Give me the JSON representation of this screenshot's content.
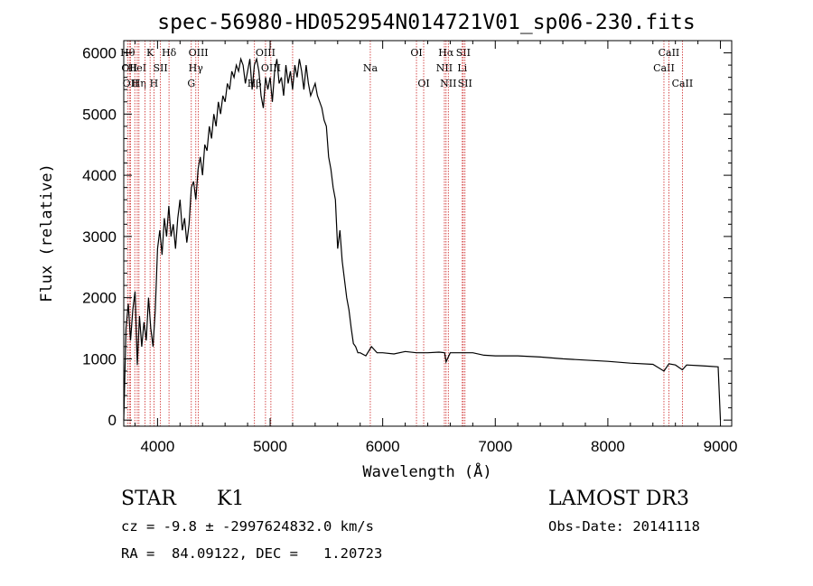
{
  "chart_data": {
    "type": "line",
    "title": "spec-56980-HD052954N014721V01_sp06-230.fits",
    "xlabel": "Wavelength (Å)",
    "ylabel": "Flux (relative)",
    "xlim": [
      3700,
      9100
    ],
    "ylim": [
      -100,
      6200
    ],
    "xticks": [
      4000,
      5000,
      6000,
      7000,
      8000,
      9000
    ],
    "yticks": [
      0,
      1000,
      2000,
      3000,
      4000,
      5000,
      6000
    ],
    "grid": false,
    "series": [
      {
        "x": [
          3700,
          3720,
          3740,
          3760,
          3780,
          3800,
          3820,
          3840,
          3860,
          3880,
          3900,
          3920,
          3940,
          3960,
          3980,
          4000,
          4020,
          4040,
          4060,
          4080,
          4100,
          4120,
          4140,
          4160,
          4180,
          4200,
          4220,
          4240,
          4260,
          4280,
          4300,
          4320,
          4340,
          4360,
          4380,
          4400,
          4420,
          4440,
          4460,
          4480,
          4500,
          4520,
          4540,
          4560,
          4580,
          4600,
          4620,
          4640,
          4660,
          4680,
          4700,
          4720,
          4740,
          4760,
          4780,
          4800,
          4820,
          4840,
          4860,
          4880,
          4900,
          4920,
          4940,
          4960,
          4980,
          5000,
          5020,
          5040,
          5060,
          5080,
          5100,
          5120,
          5140,
          5160,
          5180,
          5200,
          5220,
          5240,
          5260,
          5280,
          5300,
          5320,
          5340,
          5360,
          5380,
          5400,
          5420,
          5440,
          5460,
          5480,
          5500,
          5520,
          5540,
          5560,
          5580,
          5600,
          5620,
          5640,
          5660,
          5680,
          5700,
          5720,
          5740,
          5760,
          5780,
          5800,
          5850,
          5900,
          5950,
          6000,
          6100,
          6200,
          6300,
          6400,
          6500,
          6550,
          6563,
          6600,
          6700,
          6800,
          6900,
          7000,
          7200,
          7400,
          7600,
          7800,
          8000,
          8200,
          8400,
          8498,
          8542,
          8600,
          8662,
          8700,
          8800,
          8900,
          8980,
          9000
        ],
        "y": [
          0,
          1500,
          1900,
          1300,
          1800,
          2100,
          900,
          1700,
          1200,
          1600,
          1300,
          2000,
          1500,
          1200,
          1800,
          2800,
          3100,
          2700,
          3300,
          3000,
          3500,
          3000,
          3200,
          2800,
          3300,
          3600,
          3100,
          3300,
          2900,
          3200,
          3800,
          3900,
          3600,
          4100,
          4300,
          4000,
          4500,
          4400,
          4800,
          4600,
          5000,
          4800,
          5200,
          5000,
          5300,
          5200,
          5500,
          5400,
          5700,
          5600,
          5800,
          5700,
          5900,
          5800,
          5500,
          5700,
          5900,
          5400,
          5800,
          5900,
          5700,
          5300,
          5100,
          5600,
          5400,
          5600,
          5200,
          5700,
          5900,
          5500,
          5600,
          5300,
          5800,
          5500,
          5700,
          5400,
          5800,
          5600,
          5900,
          5700,
          5400,
          5800,
          5500,
          5300,
          5400,
          5500,
          5300,
          5200,
          5100,
          4900,
          4800,
          4300,
          4100,
          3800,
          3600,
          2800,
          3100,
          2600,
          2300,
          2000,
          1800,
          1500,
          1250,
          1200,
          1100,
          1100,
          1050,
          1200,
          1100,
          1100,
          1080,
          1120,
          1100,
          1100,
          1110,
          1100,
          950,
          1100,
          1100,
          1100,
          1060,
          1050,
          1050,
          1030,
          1000,
          980,
          960,
          930,
          910,
          800,
          920,
          900,
          820,
          900,
          890,
          880,
          870,
          0
        ]
      }
    ]
  },
  "line_markers": [
    {
      "x": 3734,
      "row": 1,
      "label": "Hθ"
    },
    {
      "x": 3750,
      "row": 2,
      "label": "OII"
    },
    {
      "x": 3760,
      "row": 3,
      "label": "OII"
    },
    {
      "x": 3798,
      "row": 1,
      "label": ""
    },
    {
      "x": 3820,
      "row": 2,
      "label": "HeI"
    },
    {
      "x": 3835,
      "row": 3,
      "label": "Hη"
    },
    {
      "x": 3889,
      "row": 3,
      "label": ""
    },
    {
      "x": 3934,
      "row": 1,
      "label": "K"
    },
    {
      "x": 3968,
      "row": 3,
      "label": "H"
    },
    {
      "x": 4026,
      "row": 2,
      "label": "SII"
    },
    {
      "x": 4102,
      "row": 1,
      "label": "Hδ"
    },
    {
      "x": 4300,
      "row": 3,
      "label": "G"
    },
    {
      "x": 4340,
      "row": 2,
      "label": "Hγ"
    },
    {
      "x": 4363,
      "row": 1,
      "label": "OIII"
    },
    {
      "x": 4861,
      "row": 3,
      "label": "Hβ"
    },
    {
      "x": 4959,
      "row": 1,
      "label": "OIII"
    },
    {
      "x": 5007,
      "row": 2,
      "label": "OIII"
    },
    {
      "x": 5200,
      "row": 3,
      "label": ""
    },
    {
      "x": 5890,
      "row": 2,
      "label": "Na"
    },
    {
      "x": 6300,
      "row": 1,
      "label": "OI"
    },
    {
      "x": 6364,
      "row": 3,
      "label": "OI"
    },
    {
      "x": 6548,
      "row": 2,
      "label": "NII"
    },
    {
      "x": 6563,
      "row": 1,
      "label": "Hα"
    },
    {
      "x": 6583,
      "row": 3,
      "label": "NII"
    },
    {
      "x": 6707,
      "row": 2,
      "label": "Li"
    },
    {
      "x": 6716,
      "row": 1,
      "label": "SII"
    },
    {
      "x": 6731,
      "row": 3,
      "label": "SII"
    },
    {
      "x": 8498,
      "row": 2,
      "label": "CaII"
    },
    {
      "x": 8542,
      "row": 1,
      "label": "CaII"
    },
    {
      "x": 8662,
      "row": 3,
      "label": "CaII"
    }
  ],
  "info": {
    "object_class": "STAR",
    "subclass": "K1",
    "survey": "LAMOST DR3",
    "cz_line": "cz = -9.8 ± -2997624832.0 km/s",
    "obs_date_line": "Obs-Date: 20141118",
    "radec_line": "RA =  84.09122, DEC =   1.20723"
  },
  "colors": {
    "spectrum": "#000000",
    "line_markers": "#cc2222",
    "background": "#ffffff"
  }
}
